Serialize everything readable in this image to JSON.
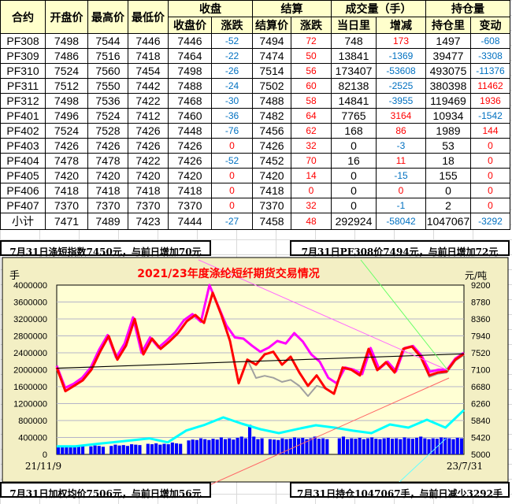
{
  "table": {
    "group_headers": {
      "close": "收盘",
      "settle": "结算",
      "volume": "成交量（手）",
      "oi": "持仓量"
    },
    "columns": [
      "合约",
      "开盘价",
      "最高价",
      "最低价",
      "收盘价",
      "涨跌",
      "结算价",
      "涨跌",
      "当日里",
      "增减",
      "持仓里",
      "变动"
    ],
    "rows": [
      [
        "PF308",
        "7498",
        "7544",
        "7446",
        "7446",
        "-52",
        "7494",
        "72",
        "748",
        "173",
        "1497",
        "-608"
      ],
      [
        "PF309",
        "7486",
        "7516",
        "7418",
        "7464",
        "-22",
        "7474",
        "50",
        "13841",
        "-1369",
        "39477",
        "-3308"
      ],
      [
        "PF310",
        "7524",
        "7560",
        "7454",
        "7498",
        "-26",
        "7514",
        "56",
        "173407",
        "-53608",
        "493075",
        "-11376"
      ],
      [
        "PF311",
        "7512",
        "7550",
        "7442",
        "7488",
        "-24",
        "7502",
        "60",
        "82138",
        "-2525",
        "380398",
        "11462"
      ],
      [
        "PF312",
        "7498",
        "7536",
        "7422",
        "7468",
        "-30",
        "7488",
        "58",
        "14841",
        "-3955",
        "119469",
        "1936"
      ],
      [
        "PF401",
        "7496",
        "7524",
        "7412",
        "7460",
        "-36",
        "7482",
        "64",
        "7765",
        "3164",
        "10934",
        "-1542"
      ],
      [
        "PF402",
        "7524",
        "7528",
        "7426",
        "7448",
        "-76",
        "7456",
        "62",
        "168",
        "86",
        "1989",
        "144"
      ],
      [
        "PF403",
        "7426",
        "7426",
        "7426",
        "7426",
        "0",
        "7426",
        "32",
        "0",
        "-3",
        "53",
        "0"
      ],
      [
        "PF404",
        "7478",
        "7478",
        "7422",
        "7426",
        "-52",
        "7452",
        "70",
        "16",
        "11",
        "18",
        "0"
      ],
      [
        "PF405",
        "7420",
        "7420",
        "7420",
        "7420",
        "0",
        "7420",
        "14",
        "0",
        "-15",
        "155",
        "0"
      ],
      [
        "PF406",
        "7418",
        "7418",
        "7418",
        "7418",
        "0",
        "7418",
        "0",
        "0",
        "0",
        "0",
        "0"
      ],
      [
        "PF407",
        "7370",
        "7370",
        "7370",
        "7370",
        "0",
        "7370",
        "32",
        "0",
        "-1",
        "2",
        "0"
      ],
      [
        "小计",
        "7471",
        "7489",
        "7423",
        "7444",
        "-27",
        "7458",
        "48",
        "292924",
        "-58042",
        "1047067",
        "-3292"
      ]
    ]
  },
  "captions": {
    "top_left": "7月31日涤短指数7450元，与前日增加70元",
    "top_right": "7月31日PF308价7494元，与前日增加72元",
    "bottom_left": "7月31日加权均价7506元，与前日增加56元",
    "bottom_right": "7月31日持仓1047067手，与前日减少3292手"
  },
  "colors": {
    "up": "#FF0000",
    "down": "#0070C0",
    "header_bg": "#FFFFCC",
    "panel_bg": "#F3EFC4",
    "plot_bg": "#FFFFD4"
  },
  "chart_data": {
    "type": "line",
    "title": "2021/23年度涤纶短纤期货交易情况",
    "ylabel_left": "手",
    "ylabel_right": "元/吨",
    "x_start": "21/11/9",
    "x_end": "23/7/31",
    "ylim_left": [
      0,
      4000000
    ],
    "ylim_right": [
      5000,
      9200
    ],
    "left_ticks": [
      "4000000",
      "3600000",
      "3200000",
      "2800000",
      "2400000",
      "2000000",
      "1600000",
      "1200000",
      "800000",
      "400000",
      "0"
    ],
    "right_ticks": [
      "9200",
      "8780",
      "8360",
      "7940",
      "7520",
      "7100",
      "6680",
      "6260",
      "5840",
      "5420",
      "5000"
    ],
    "grid": true,
    "series": [
      {
        "axis": "right",
        "color": "#FF00FF",
        "values": [
          7200,
          6650,
          6750,
          6900,
          7150,
          7600,
          7960,
          7400,
          7750,
          8400,
          7520,
          7900,
          7650,
          7830,
          8040,
          8330,
          8480,
          8290,
          9200,
          8700,
          8200,
          7900,
          7872,
          7700,
          7546,
          7650,
          7813,
          7750,
          8009,
          7800,
          7481,
          7300,
          6900,
          6764,
          7155,
          7100,
          6990,
          7640,
          7120,
          7300,
          7060,
          7640,
          7690,
          7450,
          7050,
          7100,
          7100,
          7380,
          7520
        ]
      },
      {
        "axis": "right",
        "color": "#A0A0A0",
        "values": [
          7155,
          6569,
          6700,
          6836,
          7100,
          7546,
          7936,
          7350,
          7700,
          8360,
          7481,
          7872,
          7618,
          7800,
          8009,
          8300,
          8458,
          8262,
          9011,
          8458,
          7813,
          6764,
          7350,
          6894,
          6950,
          6900,
          6797,
          6850,
          6700,
          6445,
          6700,
          6640,
          6504,
          7155,
          7100,
          6959,
          7618,
          7090,
          7285,
          7031,
          7618,
          7676,
          7422,
          6920,
          7000,
          7030,
          7320,
          7470
        ]
      },
      {
        "axis": "right",
        "color": "#FF0000",
        "values": [
          7155,
          6569,
          6700,
          6836,
          7100,
          7546,
          7936,
          7350,
          7700,
          8360,
          7481,
          7872,
          7618,
          7800,
          8009,
          8300,
          8458,
          8262,
          9011,
          8458,
          7813,
          6764,
          7350,
          7226,
          7481,
          7546,
          7226,
          7422,
          7031,
          6700,
          6959,
          6640,
          6504,
          7155,
          7100,
          6959,
          7618,
          7090,
          7285,
          7031,
          7618,
          7676,
          7422,
          6959,
          7031,
          7057,
          7350,
          7494
        ]
      },
      {
        "axis": "left",
        "color": "#00FFFF",
        "values": [
          192000,
          192000,
          240000,
          285000,
          330000,
          378000,
          285000,
          564000,
          700000,
          874000,
          725000,
          595000,
          502000,
          600000,
          688000,
          632000,
          560000,
          502000,
          707000,
          632000,
          818000,
          632000,
          1047067
        ]
      }
    ],
    "volume_bars": {
      "axis": "left",
      "color": "#0000FF",
      "values": [
        180000,
        200000,
        190000,
        170000,
        210000,
        180000,
        200000,
        0,
        190000,
        210000,
        200000,
        180000,
        0,
        200000,
        230000,
        210000,
        220000,
        200000,
        240000,
        230000,
        220000,
        0,
        250000,
        240000,
        260000,
        230000,
        250000,
        240000,
        280000,
        260000,
        250000,
        0,
        330000,
        350000,
        340000,
        380000,
        360000,
        340000,
        370000,
        350000,
        400000,
        360000,
        380000,
        350000,
        390000,
        420000,
        380000,
        700000,
        420000,
        360000,
        380000,
        0,
        360000,
        350000,
        340000,
        380000,
        360000,
        370000,
        400000,
        380000,
        390000,
        360000,
        380000,
        420000,
        370000,
        380000,
        360000,
        0,
        0,
        380000,
        420000,
        360000,
        380000,
        370000,
        390000,
        360000,
        380000,
        400000,
        370000,
        360000,
        380000,
        390000,
        370000,
        380000,
        360000,
        400000,
        380000,
        370000,
        390000,
        420000,
        380000,
        360000,
        380000,
        370000,
        400000,
        390000,
        380000,
        360000,
        390000,
        380000
      ]
    },
    "trendline": {
      "color": "#000000",
      "start": 7136,
      "end": 7494
    }
  }
}
